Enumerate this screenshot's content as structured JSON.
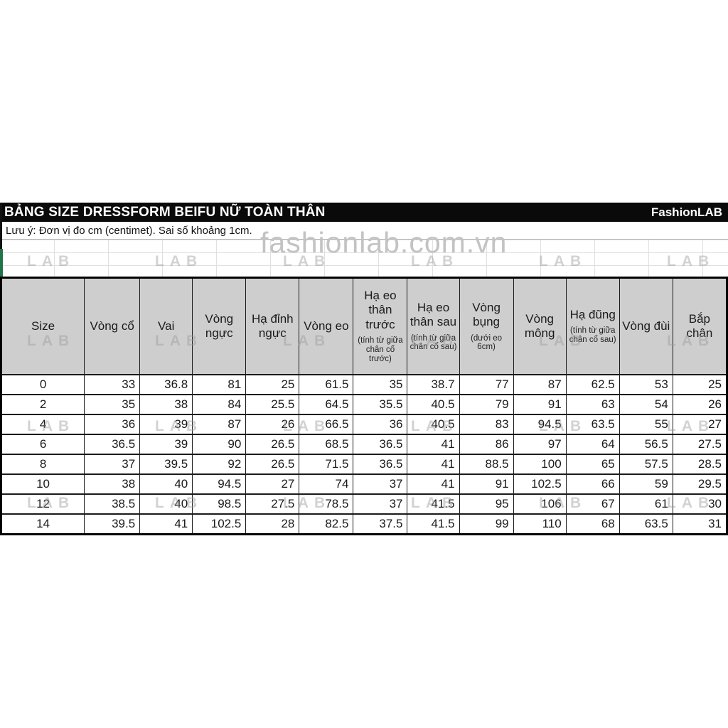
{
  "title_bar": {
    "title": "BẢNG SIZE DRESSFORM BEIFU NỮ TOÀN THÂN",
    "brand": "FashionLAB"
  },
  "note": "Lưu ý: Đơn vị đo cm (centimet). Sai số khoảng 1cm.",
  "watermark": {
    "url_text": "fashionlab.com.vn",
    "tile_text": "LAB"
  },
  "table": {
    "columns": [
      {
        "label": "Size",
        "sub": ""
      },
      {
        "label": "Vòng cổ",
        "sub": ""
      },
      {
        "label": "Vai",
        "sub": ""
      },
      {
        "label": "Vòng ngực",
        "sub": ""
      },
      {
        "label": "Hạ đỉnh ngực",
        "sub": ""
      },
      {
        "label": "Vòng eo",
        "sub": ""
      },
      {
        "label": "Hạ eo thân trước",
        "sub": "(tính từ giữa chân cổ trước)"
      },
      {
        "label": "Hạ eo thân sau",
        "sub": "(tính từ giữa chân cổ sau)"
      },
      {
        "label": "Vòng bụng",
        "sub": "(dưới eo 6cm)"
      },
      {
        "label": "Vòng mông",
        "sub": ""
      },
      {
        "label": "Hạ đũng",
        "sub": "(tính từ giữa chân cổ sau)"
      },
      {
        "label": "Vòng đùi",
        "sub": ""
      },
      {
        "label": "Bắp chân",
        "sub": ""
      }
    ],
    "rows": [
      [
        "0",
        "33",
        "36.8",
        "81",
        "25",
        "61.5",
        "35",
        "38.7",
        "77",
        "87",
        "62.5",
        "53",
        "25"
      ],
      [
        "2",
        "35",
        "38",
        "84",
        "25.5",
        "64.5",
        "35.5",
        "40.5",
        "79",
        "91",
        "63",
        "54",
        "26"
      ],
      [
        "4",
        "36",
        "39",
        "87",
        "26",
        "66.5",
        "36",
        "40.5",
        "83",
        "94.5",
        "63.5",
        "55",
        "27"
      ],
      [
        "6",
        "36.5",
        "39",
        "90",
        "26.5",
        "68.5",
        "36.5",
        "41",
        "86",
        "97",
        "64",
        "56.5",
        "27.5"
      ],
      [
        "8",
        "37",
        "39.5",
        "92",
        "26.5",
        "71.5",
        "36.5",
        "41",
        "88.5",
        "100",
        "65",
        "57.5",
        "28.5"
      ],
      [
        "10",
        "38",
        "40",
        "94.5",
        "27",
        "74",
        "37",
        "41",
        "91",
        "102.5",
        "66",
        "59",
        "29.5"
      ],
      [
        "12",
        "38.5",
        "40",
        "98.5",
        "27.5",
        "78.5",
        "37",
        "41.5",
        "95",
        "106",
        "67",
        "61",
        "30"
      ],
      [
        "14",
        "39.5",
        "41",
        "102.5",
        "28",
        "82.5",
        "37.5",
        "41.5",
        "99",
        "110",
        "68",
        "63.5",
        "31"
      ]
    ]
  },
  "colors": {
    "title_bar_bg": "#0a0a0a",
    "title_bar_text": "#ffffff",
    "header_cell_bg": "#cecece",
    "table_border": "#000000",
    "accent_green": "#21734a",
    "watermark_gray": "#c3c3c3"
  }
}
